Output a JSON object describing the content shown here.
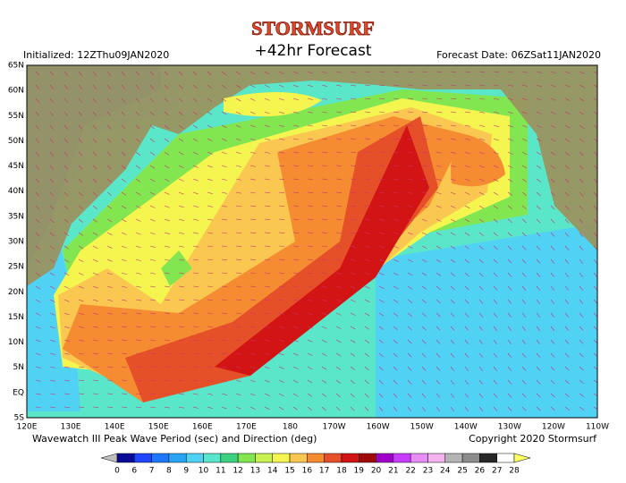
{
  "header": {
    "brand": "STORMSURF",
    "title": "+42hr Forecast",
    "initialized": "Initialized: 12ZThu09JAN2020",
    "forecast_date": "Forecast Date: 06ZSat11JAN2020"
  },
  "map": {
    "lat_labels": [
      "65N",
      "60N",
      "55N",
      "50N",
      "45N",
      "40N",
      "35N",
      "30N",
      "25N",
      "20N",
      "15N",
      "10N",
      "5N",
      "EQ",
      "5S"
    ],
    "lon_labels": [
      "120E",
      "130E",
      "140E",
      "150E",
      "160E",
      "170E",
      "180",
      "170W",
      "160W",
      "150W",
      "140W",
      "130W",
      "120W",
      "110W"
    ]
  },
  "footer": {
    "caption": "Wavewatch III Peak Wave Period (sec) and Direction (deg)",
    "copyright": "Copyright 2020 Stormsurf"
  },
  "colorbar": {
    "levels": [
      0,
      6,
      7,
      8,
      9,
      10,
      11,
      12,
      13,
      14,
      15,
      16,
      17,
      18,
      19,
      20,
      21,
      22,
      23,
      24,
      25,
      26,
      27,
      28
    ],
    "colors": [
      "#0a0a96",
      "#1e46ff",
      "#1e78ff",
      "#28a5f5",
      "#50d2f5",
      "#5ae6c8",
      "#3cd282",
      "#82e650",
      "#c8f050",
      "#f5f550",
      "#fac850",
      "#f58c32",
      "#e65028",
      "#d21414",
      "#a00a0a",
      "#a000c8",
      "#c83cff",
      "#e68cf5",
      "#f5b4f0",
      "#b4b4b4",
      "#8c8c8c",
      "#282828",
      "#ffffff",
      "#ffff64"
    ]
  }
}
